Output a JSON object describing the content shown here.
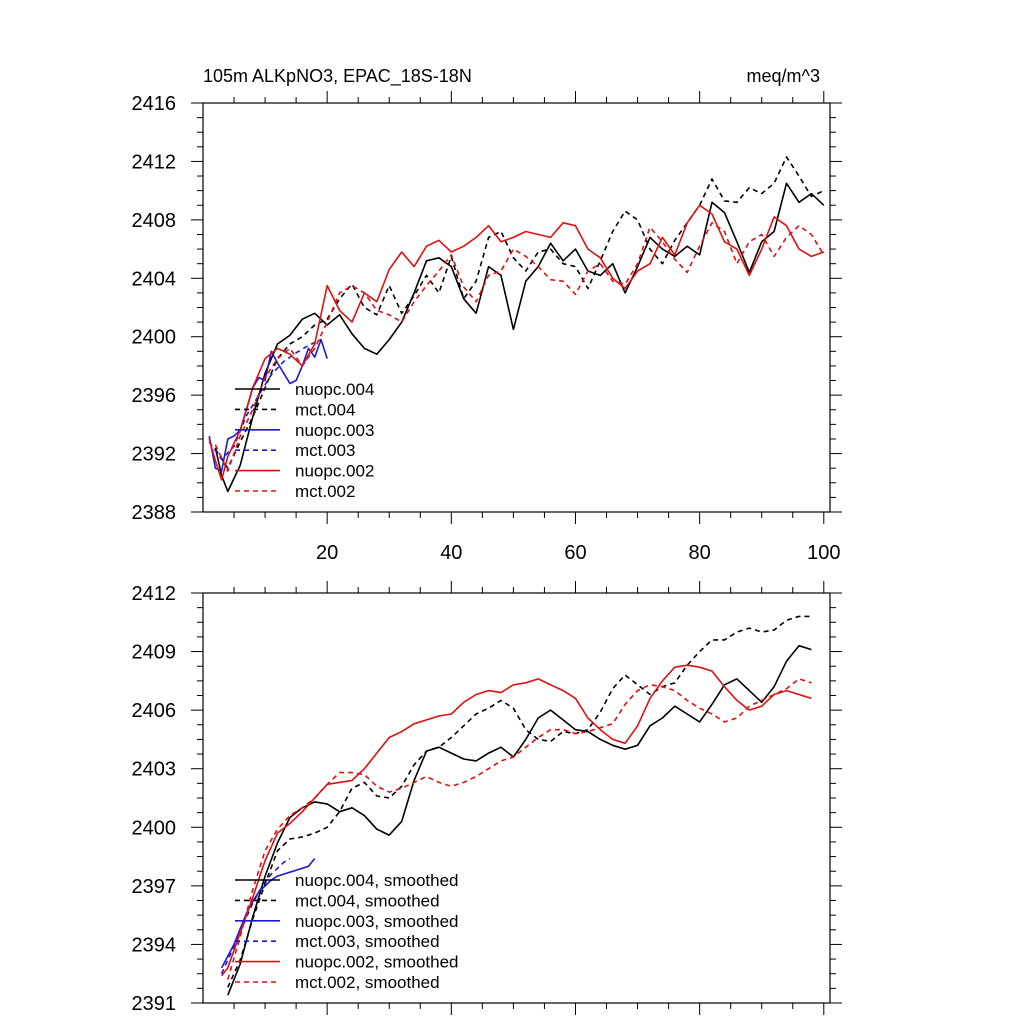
{
  "chart_data": [
    {
      "type": "line",
      "title": "105m ALKpNO3, EPAC_18S-18N",
      "units": "meq/m^3",
      "xlim": [
        0,
        101
      ],
      "ylim": [
        2388,
        2416
      ],
      "xticks": [
        20,
        40,
        60,
        80,
        100
      ],
      "yticks": [
        2388,
        2392,
        2396,
        2400,
        2404,
        2408,
        2412,
        2416
      ],
      "series": [
        {
          "name": "nuopc.004",
          "color": "#000000",
          "dash": "solid",
          "x": [
            2,
            3,
            4,
            6,
            8,
            10,
            12,
            14,
            16,
            18,
            20,
            22,
            24,
            26,
            28,
            30,
            32,
            34,
            36,
            38,
            40,
            42,
            44,
            46,
            48,
            50,
            52,
            54,
            56,
            58,
            60,
            62,
            64,
            66,
            68,
            70,
            72,
            74,
            76,
            78,
            80,
            82,
            84,
            86,
            88,
            90,
            92,
            94,
            96,
            98,
            100
          ],
          "y": [
            2392.4,
            2390.5,
            2389.4,
            2391.2,
            2394.5,
            2397.5,
            2399.5,
            2400.1,
            2401.2,
            2401.6,
            2400.8,
            2401.5,
            2400.2,
            2399.2,
            2398.8,
            2399.8,
            2401.0,
            2403.0,
            2405.2,
            2405.4,
            2404.8,
            2402.6,
            2401.6,
            2404.8,
            2404.2,
            2400.5,
            2403.8,
            2404.8,
            2406.4,
            2405.2,
            2406.0,
            2404.5,
            2404.2,
            2405.0,
            2403.0,
            2404.8,
            2406.8,
            2406.0,
            2405.5,
            2406.2,
            2405.6,
            2409.2,
            2408.5,
            2406.5,
            2404.4,
            2406.5,
            2407.2,
            2410.5,
            2409.2,
            2409.8,
            2409.0
          ]
        },
        {
          "name": "mct.004",
          "color": "#000000",
          "dash": "dashed",
          "x": [
            2,
            4,
            6,
            8,
            10,
            12,
            14,
            16,
            18,
            20,
            22,
            24,
            26,
            28,
            30,
            32,
            34,
            36,
            38,
            40,
            42,
            44,
            46,
            48,
            50,
            52,
            54,
            56,
            58,
            60,
            62,
            64,
            66,
            68,
            70,
            72,
            74,
            76,
            78,
            80,
            82,
            84,
            86,
            88,
            90,
            92,
            94,
            96,
            98,
            100
          ],
          "y": [
            2392.3,
            2391.0,
            2392.8,
            2394.5,
            2396.5,
            2398.5,
            2399.5,
            2400.0,
            2400.8,
            2401.2,
            2402.6,
            2403.6,
            2402.0,
            2401.5,
            2403.5,
            2401.6,
            2402.8,
            2404.2,
            2403.0,
            2405.5,
            2402.6,
            2403.8,
            2406.8,
            2407.2,
            2405.4,
            2404.5,
            2405.8,
            2406.0,
            2405.0,
            2404.8,
            2403.3,
            2405.2,
            2407.2,
            2408.6,
            2408.0,
            2406.0,
            2405.0,
            2406.6,
            2407.8,
            2409.0,
            2410.8,
            2409.3,
            2409.2,
            2410.2,
            2409.8,
            2410.5,
            2412.3,
            2411.0,
            2409.6,
            2410.0
          ]
        },
        {
          "name": "nuopc.003",
          "color": "#1a1ad6",
          "dash": "solid",
          "x": [
            1,
            2,
            3,
            4,
            5,
            6,
            7,
            8,
            9,
            10,
            11,
            12,
            13,
            14,
            15,
            16,
            17,
            18,
            19,
            20
          ],
          "y": [
            2393.2,
            2391.0,
            2390.8,
            2393.0,
            2393.2,
            2393.6,
            2395.0,
            2396.5,
            2397.2,
            2397.0,
            2399.0,
            2398.2,
            2397.5,
            2396.8,
            2397.0,
            2398.0,
            2399.2,
            2398.6,
            2399.8,
            2398.5
          ]
        },
        {
          "name": "mct.003",
          "color": "#1a1ad6",
          "dash": "dashed",
          "x": [
            1,
            3,
            5,
            7,
            9,
            11,
            13,
            15,
            17,
            19
          ],
          "y": [
            2392.8,
            2391.6,
            2392.5,
            2394.6,
            2396.0,
            2397.4,
            2398.3,
            2398.9,
            2399.4,
            2399.8
          ]
        },
        {
          "name": "nuopc.002",
          "color": "#e01010",
          "dash": "solid",
          "x": [
            1,
            2,
            3,
            4,
            6,
            8,
            10,
            12,
            14,
            16,
            18,
            20,
            22,
            24,
            26,
            28,
            30,
            32,
            34,
            36,
            38,
            40,
            42,
            44,
            46,
            48,
            50,
            52,
            54,
            56,
            58,
            60,
            62,
            64,
            66,
            68,
            70,
            72,
            74,
            76,
            78,
            80,
            82,
            84,
            86,
            88,
            90,
            92,
            94,
            96,
            98,
            100
          ],
          "y": [
            2393.0,
            2391.5,
            2390.2,
            2391.8,
            2393.6,
            2396.5,
            2398.5,
            2399.2,
            2398.8,
            2398.0,
            2399.5,
            2403.5,
            2401.8,
            2401.0,
            2403.0,
            2402.4,
            2404.6,
            2405.8,
            2404.8,
            2406.2,
            2406.6,
            2405.8,
            2406.2,
            2406.8,
            2407.6,
            2406.5,
            2406.8,
            2407.2,
            2407.0,
            2406.8,
            2407.8,
            2407.6,
            2406.0,
            2405.4,
            2404.0,
            2403.3,
            2404.5,
            2405.0,
            2406.8,
            2405.6,
            2407.8,
            2409.0,
            2408.4,
            2406.5,
            2406.0,
            2404.2,
            2406.0,
            2408.2,
            2407.6,
            2406.0,
            2405.5,
            2405.8
          ]
        },
        {
          "name": "mct.002",
          "color": "#e01010",
          "dash": "dashed",
          "x": [
            2,
            4,
            6,
            8,
            10,
            12,
            14,
            16,
            18,
            20,
            22,
            24,
            26,
            28,
            30,
            32,
            34,
            36,
            38,
            40,
            42,
            44,
            46,
            48,
            50,
            52,
            54,
            56,
            58,
            60,
            62,
            64,
            66,
            68,
            70,
            72,
            74,
            76,
            78,
            80,
            82,
            84,
            86,
            88,
            90,
            92,
            94,
            96,
            98,
            100
          ],
          "y": [
            2392.6,
            2390.8,
            2393.2,
            2395.0,
            2397.2,
            2398.5,
            2399.2,
            2398.0,
            2399.2,
            2401.0,
            2403.0,
            2403.5,
            2403.0,
            2401.8,
            2401.5,
            2401.0,
            2402.4,
            2403.5,
            2404.5,
            2405.6,
            2403.4,
            2402.4,
            2404.2,
            2404.5,
            2406.0,
            2405.5,
            2404.8,
            2403.9,
            2403.8,
            2402.9,
            2404.5,
            2405.0,
            2403.8,
            2403.6,
            2405.0,
            2407.5,
            2406.5,
            2405.3,
            2404.4,
            2406.2,
            2407.8,
            2407.2,
            2405.0,
            2406.5,
            2407.0,
            2405.5,
            2406.8,
            2407.6,
            2407.0,
            2405.6
          ]
        }
      ],
      "legend": [
        "nuopc.004",
        "mct.004",
        "nuopc.003",
        "mct.003",
        "nuopc.002",
        "mct.002"
      ]
    },
    {
      "type": "line",
      "title": "",
      "units": "",
      "xlim": [
        0,
        101
      ],
      "ylim": [
        2391,
        2412
      ],
      "xticks": [
        20,
        40,
        60,
        80,
        100
      ],
      "yticks": [
        2391,
        2394,
        2397,
        2400,
        2403,
        2406,
        2409,
        2412
      ],
      "series": [
        {
          "name": "nuopc.004, smoothed",
          "color": "#000000",
          "dash": "solid",
          "x": [
            4,
            6,
            8,
            10,
            12,
            14,
            16,
            18,
            20,
            22,
            24,
            26,
            28,
            30,
            32,
            34,
            36,
            38,
            40,
            42,
            44,
            46,
            48,
            50,
            52,
            54,
            56,
            58,
            60,
            62,
            64,
            66,
            68,
            70,
            72,
            74,
            76,
            78,
            80,
            82,
            84,
            86,
            88,
            90,
            92,
            94,
            96,
            98
          ],
          "y": [
            2391.4,
            2393.0,
            2395.4,
            2397.5,
            2399.2,
            2400.5,
            2401.0,
            2401.3,
            2401.2,
            2400.8,
            2401.0,
            2400.6,
            2399.9,
            2399.6,
            2400.3,
            2402.4,
            2403.9,
            2404.1,
            2403.8,
            2403.5,
            2403.4,
            2403.8,
            2404.1,
            2403.6,
            2404.5,
            2405.6,
            2406.0,
            2405.5,
            2405.0,
            2404.9,
            2404.5,
            2404.2,
            2404.0,
            2404.2,
            2405.2,
            2405.6,
            2406.2,
            2405.8,
            2405.4,
            2406.3,
            2407.3,
            2407.6,
            2407.0,
            2406.4,
            2407.2,
            2408.5,
            2409.3,
            2409.1
          ]
        },
        {
          "name": "mct.004, smoothed",
          "color": "#000000",
          "dash": "dashed",
          "x": [
            4,
            6,
            8,
            10,
            12,
            14,
            16,
            18,
            20,
            22,
            24,
            26,
            28,
            30,
            32,
            34,
            36,
            38,
            40,
            42,
            44,
            46,
            48,
            50,
            52,
            54,
            56,
            58,
            60,
            62,
            64,
            66,
            68,
            70,
            72,
            74,
            76,
            78,
            80,
            82,
            84,
            86,
            88,
            90,
            92,
            94,
            96,
            98
          ],
          "y": [
            2391.8,
            2393.2,
            2395.3,
            2397.1,
            2398.8,
            2399.4,
            2399.5,
            2399.7,
            2400.0,
            2400.8,
            2402.0,
            2402.3,
            2401.6,
            2401.5,
            2402.1,
            2403.2,
            2403.9,
            2404.1,
            2404.6,
            2405.2,
            2405.8,
            2406.1,
            2406.5,
            2406.1,
            2405.0,
            2404.5,
            2404.4,
            2404.9,
            2404.8,
            2405.0,
            2405.9,
            2407.1,
            2407.8,
            2407.3,
            2406.8,
            2407.2,
            2407.4,
            2408.3,
            2409.0,
            2409.6,
            2409.6,
            2410.0,
            2410.2,
            2410.0,
            2410.1,
            2410.6,
            2410.8,
            2410.8
          ]
        },
        {
          "name": "nuopc.003, smoothed",
          "color": "#1a1ad6",
          "dash": "solid",
          "x": [
            3,
            4,
            5,
            6,
            7,
            8,
            9,
            10,
            11,
            12,
            13,
            14,
            15,
            16,
            17,
            18
          ],
          "y": [
            2392.8,
            2393.4,
            2394.0,
            2394.8,
            2395.6,
            2396.2,
            2396.7,
            2397.0,
            2397.3,
            2397.5,
            2397.6,
            2397.7,
            2397.8,
            2397.9,
            2398.0,
            2398.4
          ]
        },
        {
          "name": "mct.003, smoothed",
          "color": "#1a1ad6",
          "dash": "dashed",
          "x": [
            3,
            4,
            5,
            6,
            7,
            8,
            9,
            10,
            11,
            12,
            13,
            14
          ],
          "y": [
            2392.5,
            2393.2,
            2393.9,
            2394.6,
            2395.4,
            2396.1,
            2396.7,
            2397.2,
            2397.6,
            2397.9,
            2398.2,
            2398.4
          ]
        },
        {
          "name": "nuopc.002, smoothed",
          "color": "#e01010",
          "dash": "solid",
          "x": [
            3,
            4,
            6,
            8,
            10,
            12,
            14,
            16,
            18,
            20,
            22,
            24,
            26,
            28,
            30,
            32,
            34,
            36,
            38,
            40,
            42,
            44,
            46,
            48,
            50,
            52,
            54,
            56,
            58,
            60,
            62,
            64,
            66,
            68,
            70,
            72,
            74,
            76,
            78,
            80,
            82,
            84,
            86,
            88,
            90,
            92,
            94,
            96,
            98
          ],
          "y": [
            2392.4,
            2392.8,
            2394.6,
            2396.4,
            2398.3,
            2399.7,
            2400.2,
            2400.8,
            2401.5,
            2402.2,
            2402.3,
            2402.4,
            2403.0,
            2403.8,
            2404.6,
            2404.9,
            2405.3,
            2405.5,
            2405.7,
            2405.8,
            2406.4,
            2406.8,
            2407.0,
            2406.9,
            2407.3,
            2407.4,
            2407.6,
            2407.3,
            2407.0,
            2406.6,
            2405.6,
            2405.0,
            2404.5,
            2404.3,
            2405.2,
            2406.6,
            2407.5,
            2408.2,
            2408.3,
            2408.2,
            2408.0,
            2407.2,
            2406.5,
            2406.0,
            2406.2,
            2406.8,
            2407.0,
            2406.8,
            2406.6
          ]
        },
        {
          "name": "mct.002, smoothed",
          "color": "#e01010",
          "dash": "dashed",
          "x": [
            4,
            6,
            8,
            10,
            12,
            14,
            16,
            18,
            20,
            22,
            24,
            26,
            28,
            30,
            32,
            34,
            36,
            38,
            40,
            42,
            44,
            46,
            48,
            50,
            52,
            54,
            56,
            58,
            60,
            62,
            64,
            66,
            68,
            70,
            72,
            74,
            76,
            78,
            80,
            82,
            84,
            86,
            88,
            90,
            92,
            94,
            96,
            98
          ],
          "y": [
            2392.2,
            2394.4,
            2396.8,
            2398.8,
            2399.9,
            2400.6,
            2401.0,
            2401.5,
            2402.2,
            2402.8,
            2402.8,
            2402.7,
            2402.1,
            2401.8,
            2402.0,
            2402.3,
            2402.6,
            2402.3,
            2402.1,
            2402.3,
            2402.6,
            2403.0,
            2403.4,
            2403.6,
            2404.1,
            2404.6,
            2405.0,
            2405.0,
            2404.8,
            2404.9,
            2405.1,
            2405.3,
            2406.3,
            2407.0,
            2407.3,
            2407.2,
            2407.0,
            2406.5,
            2406.1,
            2405.8,
            2405.4,
            2405.6,
            2406.2,
            2406.5,
            2406.8,
            2407.1,
            2407.6,
            2407.4
          ]
        }
      ],
      "legend": [
        "nuopc.004, smoothed",
        "mct.004, smoothed",
        "nuopc.003, smoothed",
        "mct.003, smoothed",
        "nuopc.002, smoothed",
        "mct.002, smoothed"
      ]
    }
  ]
}
